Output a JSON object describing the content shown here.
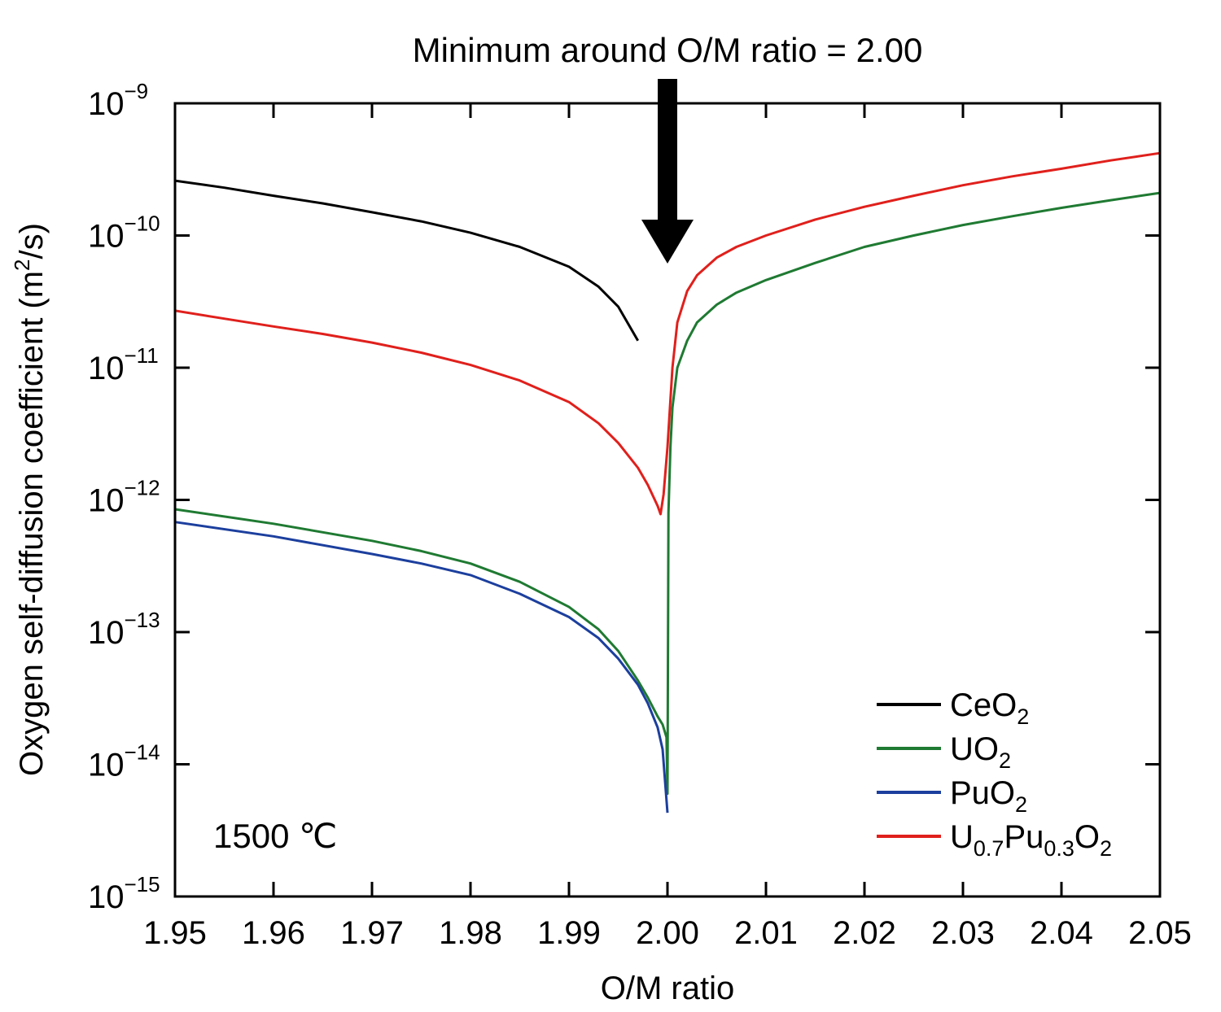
{
  "chart_data": {
    "type": "line",
    "title": "",
    "xlabel": "O/M ratio",
    "ylabel": "Oxygen self-diffusion coefficient (m²/s)",
    "ylabel_parts": {
      "pre": "Oxygen self-diffusion coefficient (m",
      "sup": "2",
      "post": "/s)"
    },
    "xlim": [
      1.95,
      2.05
    ],
    "ylim": [
      1e-15,
      1e-09
    ],
    "yscale": "log",
    "x_ticks": [
      "1.95",
      "1.96",
      "1.97",
      "1.98",
      "1.99",
      "2.00",
      "2.01",
      "2.02",
      "2.03",
      "2.04",
      "2.05"
    ],
    "y_ticks": [
      {
        "base": "10",
        "exp": "−9"
      },
      {
        "base": "10",
        "exp": "−10"
      },
      {
        "base": "10",
        "exp": "−11"
      },
      {
        "base": "10",
        "exp": "−12"
      },
      {
        "base": "10",
        "exp": "−13"
      },
      {
        "base": "10",
        "exp": "−14"
      },
      {
        "base": "10",
        "exp": "−15"
      }
    ],
    "grid": false,
    "legend_position": "bottom-right",
    "annotations": {
      "top_text": "Minimum around O/M ratio = 2.00",
      "arrow_target_x": 2.0,
      "temperature": "1500 ℃"
    },
    "series": [
      {
        "name": "CeO2",
        "legend": [
          {
            "t": "CeO",
            "s": ""
          },
          {
            "t": "2",
            "s": "sub"
          }
        ],
        "color": "#000000",
        "x": [
          1.95,
          1.955,
          1.96,
          1.965,
          1.97,
          1.975,
          1.98,
          1.985,
          1.99,
          1.993,
          1.995,
          1.997
        ],
        "y": [
          2.6e-10,
          2.3e-10,
          2e-10,
          1.75e-10,
          1.5e-10,
          1.28e-10,
          1.05e-10,
          8.2e-11,
          5.8e-11,
          4.1e-11,
          2.9e-11,
          1.6e-11
        ]
      },
      {
        "name": "UO2",
        "legend": [
          {
            "t": "UO",
            "s": ""
          },
          {
            "t": "2",
            "s": "sub"
          }
        ],
        "color": "#1f7a32",
        "x": [
          1.95,
          1.96,
          1.97,
          1.975,
          1.98,
          1.985,
          1.99,
          1.993,
          1.995,
          1.997,
          1.998,
          1.999,
          1.9995,
          1.9999,
          2.0,
          2.0001,
          2.0003,
          2.0005,
          2.001,
          2.002,
          2.003,
          2.005,
          2.007,
          2.01,
          2.015,
          2.02,
          2.025,
          2.03,
          2.035,
          2.04,
          2.045,
          2.05
        ],
        "y": [
          8.5e-13,
          6.6e-13,
          4.9e-13,
          4.1e-13,
          3.3e-13,
          2.4e-13,
          1.55e-13,
          1.05e-13,
          7.2e-14,
          4.3e-14,
          3.2e-14,
          2.3e-14,
          2e-14,
          1.6e-14,
          6e-15,
          8e-13,
          2.5e-12,
          5e-12,
          1e-11,
          1.6e-11,
          2.2e-11,
          3e-11,
          3.7e-11,
          4.6e-11,
          6.2e-11,
          8.2e-11,
          1e-10,
          1.2e-10,
          1.4e-10,
          1.62e-10,
          1.85e-10,
          2.1e-10
        ]
      },
      {
        "name": "PuO2",
        "legend": [
          {
            "t": "PuO",
            "s": ""
          },
          {
            "t": "2",
            "s": "sub"
          }
        ],
        "color": "#1c3f9e",
        "x": [
          1.95,
          1.96,
          1.97,
          1.975,
          1.98,
          1.985,
          1.99,
          1.993,
          1.995,
          1.997,
          1.998,
          1.999,
          1.9995,
          2.0
        ],
        "y": [
          6.8e-13,
          5.3e-13,
          3.9e-13,
          3.3e-13,
          2.7e-13,
          1.95e-13,
          1.3e-13,
          9e-14,
          6.3e-14,
          4e-14,
          2.9e-14,
          1.9e-14,
          1.3e-14,
          4.3e-15
        ]
      },
      {
        "name": "U0.7Pu0.3O2",
        "legend": [
          {
            "t": "U",
            "s": ""
          },
          {
            "t": "0.7",
            "s": "sub"
          },
          {
            "t": "Pu",
            "s": ""
          },
          {
            "t": "0.3",
            "s": "sub"
          },
          {
            "t": "O",
            "s": ""
          },
          {
            "t": "2",
            "s": "sub"
          }
        ],
        "color": "#e0201c",
        "x": [
          1.95,
          1.955,
          1.96,
          1.965,
          1.97,
          1.975,
          1.98,
          1.985,
          1.99,
          1.993,
          1.995,
          1.997,
          1.998,
          1.999,
          1.9993,
          1.9996,
          2.0,
          2.0005,
          2.001,
          2.002,
          2.003,
          2.005,
          2.007,
          2.01,
          2.015,
          2.02,
          2.025,
          2.03,
          2.035,
          2.04,
          2.045,
          2.05
        ],
        "y": [
          2.7e-11,
          2.35e-11,
          2.05e-11,
          1.8e-11,
          1.55e-11,
          1.3e-11,
          1.05e-11,
          8e-12,
          5.5e-12,
          3.8e-12,
          2.7e-12,
          1.75e-12,
          1.3e-12,
          9e-13,
          7.8e-13,
          1.1e-12,
          2.5e-12,
          1e-11,
          2.2e-11,
          3.8e-11,
          5e-11,
          6.8e-11,
          8.2e-11,
          1e-10,
          1.32e-10,
          1.65e-10,
          2e-10,
          2.4e-10,
          2.8e-10,
          3.2e-10,
          3.7e-10,
          4.2e-10
        ]
      }
    ]
  }
}
